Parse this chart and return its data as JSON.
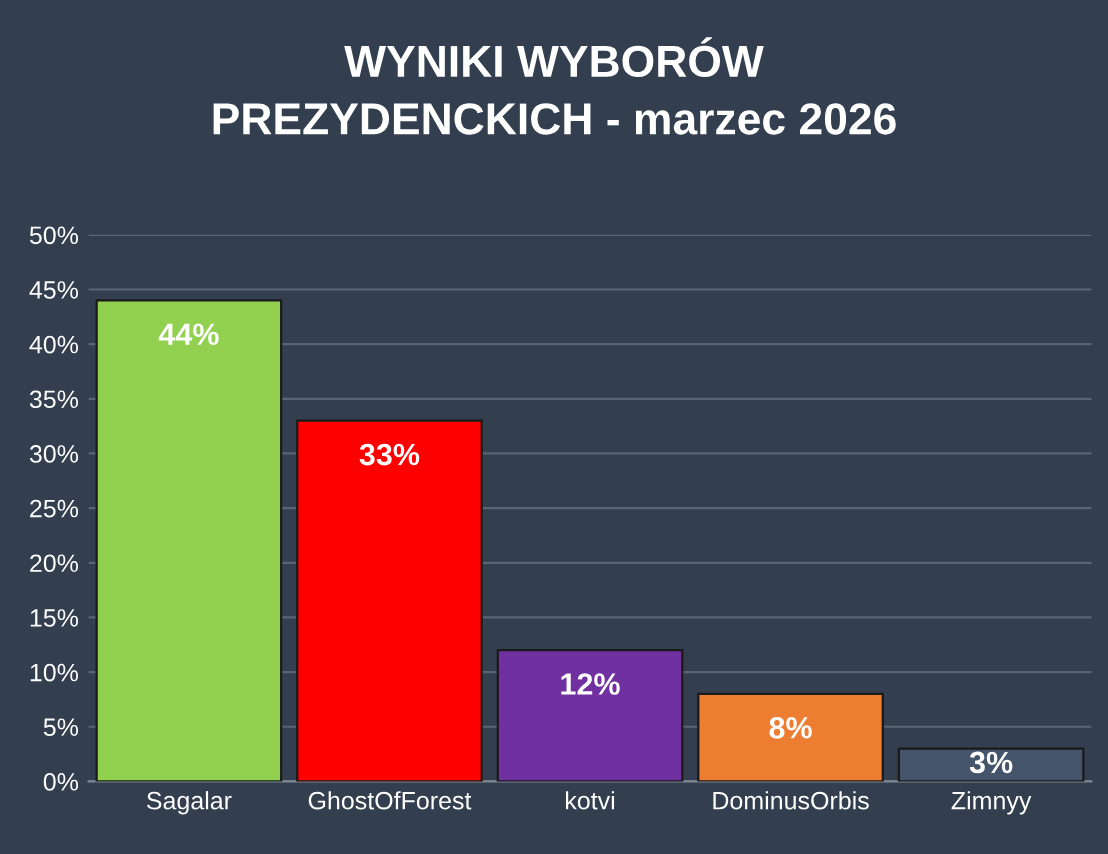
{
  "chart_data": {
    "type": "bar",
    "title": "WYNIKI WYBORÓW\nPREZYDENCKICH - marzec 2026",
    "categories": [
      "Sagalar",
      "GhostOfForest",
      "kotvi",
      "DominusOrbis",
      "Zimnyy"
    ],
    "values": [
      44,
      33,
      12,
      8,
      3
    ],
    "value_labels": [
      "44%",
      "33%",
      "12%",
      "8%",
      "3%"
    ],
    "colors": [
      "#92d050",
      "#ff0000",
      "#7030a0",
      "#ed7d31",
      "#44546a"
    ],
    "ylim": [
      0,
      50
    ],
    "yticks": [
      {
        "value": 0,
        "label": "0%"
      },
      {
        "value": 5,
        "label": "5%"
      },
      {
        "value": 10,
        "label": "10%"
      },
      {
        "value": 15,
        "label": "15%"
      },
      {
        "value": 20,
        "label": "20%"
      },
      {
        "value": 25,
        "label": "25%"
      },
      {
        "value": 30,
        "label": "30%"
      },
      {
        "value": 35,
        "label": "35%"
      },
      {
        "value": 40,
        "label": "40%"
      },
      {
        "value": 45,
        "label": "45%"
      },
      {
        "value": 50,
        "label": "50%"
      }
    ],
    "grid": "y",
    "legend": false
  }
}
